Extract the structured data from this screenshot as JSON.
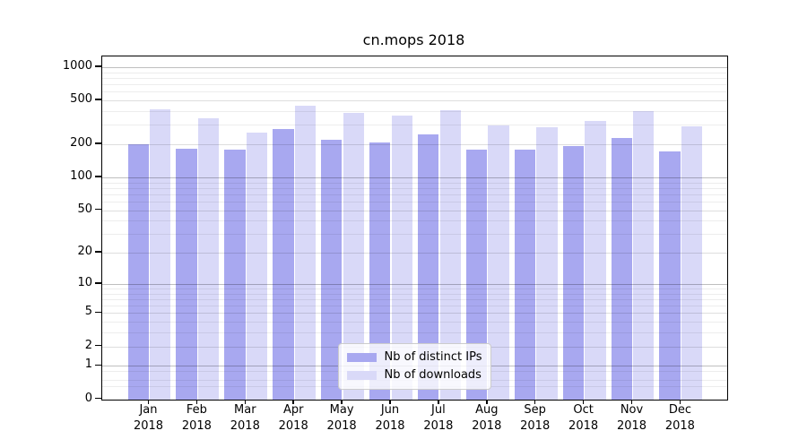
{
  "chart_data": {
    "type": "bar",
    "title": "cn.mops 2018",
    "categories": [
      "Jan",
      "Feb",
      "Mar",
      "Apr",
      "May",
      "Jun",
      "Jul",
      "Aug",
      "Sep",
      "Oct",
      "Nov",
      "Dec"
    ],
    "year": "2018",
    "series": [
      {
        "name": "Nb of distinct IPs",
        "color": "#a8a8f0",
        "values": [
          200,
          181,
          180,
          275,
          222,
          207,
          246,
          180,
          179,
          194,
          230,
          172
        ]
      },
      {
        "name": "Nb of downloads",
        "color": "#d9d9f8",
        "values": [
          417,
          346,
          256,
          445,
          385,
          366,
          410,
          298,
          287,
          327,
          400,
          292
        ]
      }
    ],
    "yscale": "log1p",
    "ylim": [
      0,
      1250
    ],
    "yticks": [
      1000,
      500,
      200,
      100,
      50,
      20,
      10,
      5,
      2,
      1,
      0
    ],
    "ytick_labels": [
      "1000",
      "500",
      "200",
      "100",
      "50",
      "20",
      "10",
      "5",
      "2",
      "1",
      "0"
    ],
    "minor_gridlines": [
      900,
      800,
      700,
      600,
      400,
      300,
      90,
      80,
      70,
      60,
      40,
      30,
      9,
      8,
      7,
      6,
      4,
      3,
      0.8,
      0.5,
      0.3
    ],
    "grid": true,
    "legend_position": "lower center",
    "axis_color": "#000000"
  }
}
